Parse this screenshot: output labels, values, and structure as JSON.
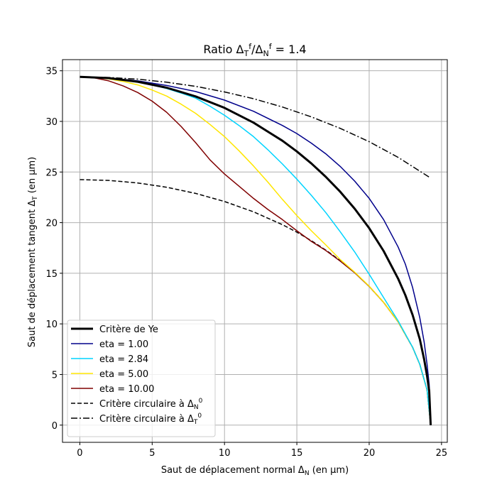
{
  "chart_data": {
    "type": "line",
    "title": {
      "prefix": "Ratio Δ",
      "sub1": "T",
      "sup1": "f",
      "mid": "/Δ",
      "sub2": "N",
      "sup2": "f",
      "suffix": " = 1.4"
    },
    "xlabel": {
      "prefix": "Saut de déplacement normal Δ",
      "sub": "N",
      "suffix": " (en μm)"
    },
    "ylabel": {
      "prefix": "Saut de déplacement tangent Δ",
      "sub": "T",
      "suffix": " (en μm)"
    },
    "xlim": [
      -1.2,
      25.4
    ],
    "ylim": [
      -1.7,
      36.1
    ],
    "xticks": [
      0,
      5,
      10,
      15,
      20,
      25
    ],
    "xtick_labels": [
      "0",
      "5",
      "10",
      "15",
      "20",
      "25"
    ],
    "yticks": [
      0,
      5,
      10,
      15,
      20,
      25,
      30,
      35
    ],
    "ytick_labels": [
      "0",
      "5",
      "10",
      "15",
      "20",
      "25",
      "30",
      "35"
    ],
    "grid": true,
    "legend_position": "lower-left",
    "series": [
      {
        "name": "Critère circulaire à Δ_N^0",
        "label": {
          "prefix": "Critère circulaire à Δ",
          "sub": "N",
          "sup": "0"
        },
        "color": "#000000",
        "style": "dashed",
        "width": 1.5,
        "x": [
          0,
          2,
          4,
          6,
          8,
          10,
          12,
          14,
          15,
          16,
          17,
          18,
          19,
          20,
          21,
          22,
          23,
          23.5,
          24,
          24.25
        ],
        "y": [
          24.25,
          24.17,
          23.92,
          23.5,
          22.89,
          22.09,
          21.07,
          19.8,
          19.06,
          18.22,
          17.29,
          16.25,
          15.07,
          13.71,
          12.13,
          10.2,
          7.69,
          5.99,
          3.47,
          0
        ]
      },
      {
        "name": "Critère circulaire à Δ_T^0",
        "label": {
          "prefix": "Critère circulaire à Δ",
          "sub": "T",
          "sup": "0"
        },
        "color": "#000000",
        "style": "dashdot",
        "width": 1.5,
        "x": [
          0,
          2,
          4,
          6,
          8,
          10,
          12,
          14,
          16,
          18,
          20,
          22,
          24.25
        ],
        "y": [
          34.4,
          34.34,
          34.17,
          33.87,
          33.46,
          32.91,
          32.24,
          31.42,
          30.45,
          29.31,
          27.99,
          26.45,
          24.4
        ]
      },
      {
        "name": "eta = 10.00",
        "label": {
          "prefix": "eta = 10.00"
        },
        "color": "#800000",
        "style": "solid",
        "width": 1.5,
        "x": [
          0,
          1,
          2,
          3,
          4,
          5,
          6,
          7,
          8,
          9,
          10,
          11,
          12,
          13,
          14,
          15,
          16,
          17,
          18,
          19,
          20,
          21,
          22,
          23,
          23.5,
          24,
          24.25
        ],
        "y": [
          34.4,
          34.3,
          34.0,
          33.5,
          32.85,
          32.0,
          30.9,
          29.5,
          27.9,
          26.2,
          24.8,
          23.6,
          22.4,
          21.3,
          20.3,
          19.2,
          18.15,
          17.25,
          16.2,
          15.05,
          13.7,
          12.12,
          10.2,
          7.69,
          5.99,
          3.47,
          0
        ]
      },
      {
        "name": "eta = 5.00",
        "label": {
          "prefix": "eta = 5.00"
        },
        "color": "#ffe600",
        "style": "solid",
        "width": 1.5,
        "x": [
          0,
          1,
          2,
          3,
          4,
          5,
          6,
          7,
          8,
          9,
          10,
          11,
          12,
          13,
          14,
          15,
          16,
          17,
          18,
          19,
          20,
          21,
          22,
          23,
          23.5,
          24,
          24.25
        ],
        "y": [
          34.4,
          34.35,
          34.2,
          33.95,
          33.6,
          33.1,
          32.5,
          31.7,
          30.8,
          29.7,
          28.5,
          27.1,
          25.6,
          24.0,
          22.3,
          20.7,
          19.2,
          17.8,
          16.35,
          15.1,
          13.72,
          12.13,
          10.2,
          7.69,
          5.99,
          3.47,
          0
        ]
      },
      {
        "name": "eta = 2.84",
        "label": {
          "prefix": "eta = 2.84"
        },
        "color": "#00d4ff",
        "style": "solid",
        "width": 1.5,
        "x": [
          0,
          1,
          2,
          3,
          4,
          5,
          6,
          7,
          8,
          9,
          10,
          11,
          12,
          13,
          14,
          15,
          16,
          17,
          18,
          19,
          20,
          21,
          22,
          23,
          23.5,
          24,
          24.25
        ],
        "y": [
          34.4,
          34.37,
          34.27,
          34.1,
          33.88,
          33.6,
          33.25,
          32.8,
          32.3,
          31.5,
          30.6,
          29.6,
          28.5,
          27.2,
          25.8,
          24.3,
          22.7,
          21.0,
          19.1,
          17.1,
          14.9,
          12.6,
          10.3,
          7.7,
          6.0,
          3.5,
          0
        ]
      },
      {
        "name": "eta = 1.00",
        "label": {
          "prefix": "eta = 1.00"
        },
        "color": "#00008b",
        "style": "solid",
        "width": 1.5,
        "x": [
          0,
          2,
          4,
          6,
          8,
          10,
          12,
          14,
          15,
          16,
          17,
          18,
          19,
          20,
          21,
          22,
          22.5,
          23,
          23.5,
          23.8,
          24,
          24.15,
          24.25
        ],
        "y": [
          34.4,
          34.3,
          34.0,
          33.55,
          32.95,
          32.1,
          31.0,
          29.6,
          28.8,
          27.85,
          26.8,
          25.55,
          24.1,
          22.4,
          20.3,
          17.6,
          15.9,
          13.6,
          10.6,
          8.2,
          6.0,
          4.0,
          0
        ]
      },
      {
        "name": "Critère de Ye",
        "label": {
          "prefix": "Critère de Ye"
        },
        "color": "#000000",
        "style": "solid",
        "width": 3,
        "x": [
          0,
          2,
          4,
          6,
          8,
          10,
          12,
          14,
          15,
          16,
          17,
          18,
          19,
          20,
          21,
          22,
          22.5,
          23,
          23.5,
          23.8,
          24,
          24.15,
          24.25
        ],
        "y": [
          34.4,
          34.28,
          33.92,
          33.33,
          32.47,
          31.34,
          29.88,
          28.09,
          27.03,
          25.85,
          24.53,
          23.05,
          21.37,
          19.45,
          17.2,
          14.47,
          12.84,
          10.89,
          8.48,
          6.49,
          4.85,
          3.38,
          0
        ]
      }
    ],
    "legend_order": [
      "Critère de Ye",
      "eta = 1.00",
      "eta = 2.84",
      "eta = 5.00",
      "eta = 10.00",
      "Critère circulaire à Δ_N^0",
      "Critère circulaire à Δ_T^0"
    ]
  }
}
